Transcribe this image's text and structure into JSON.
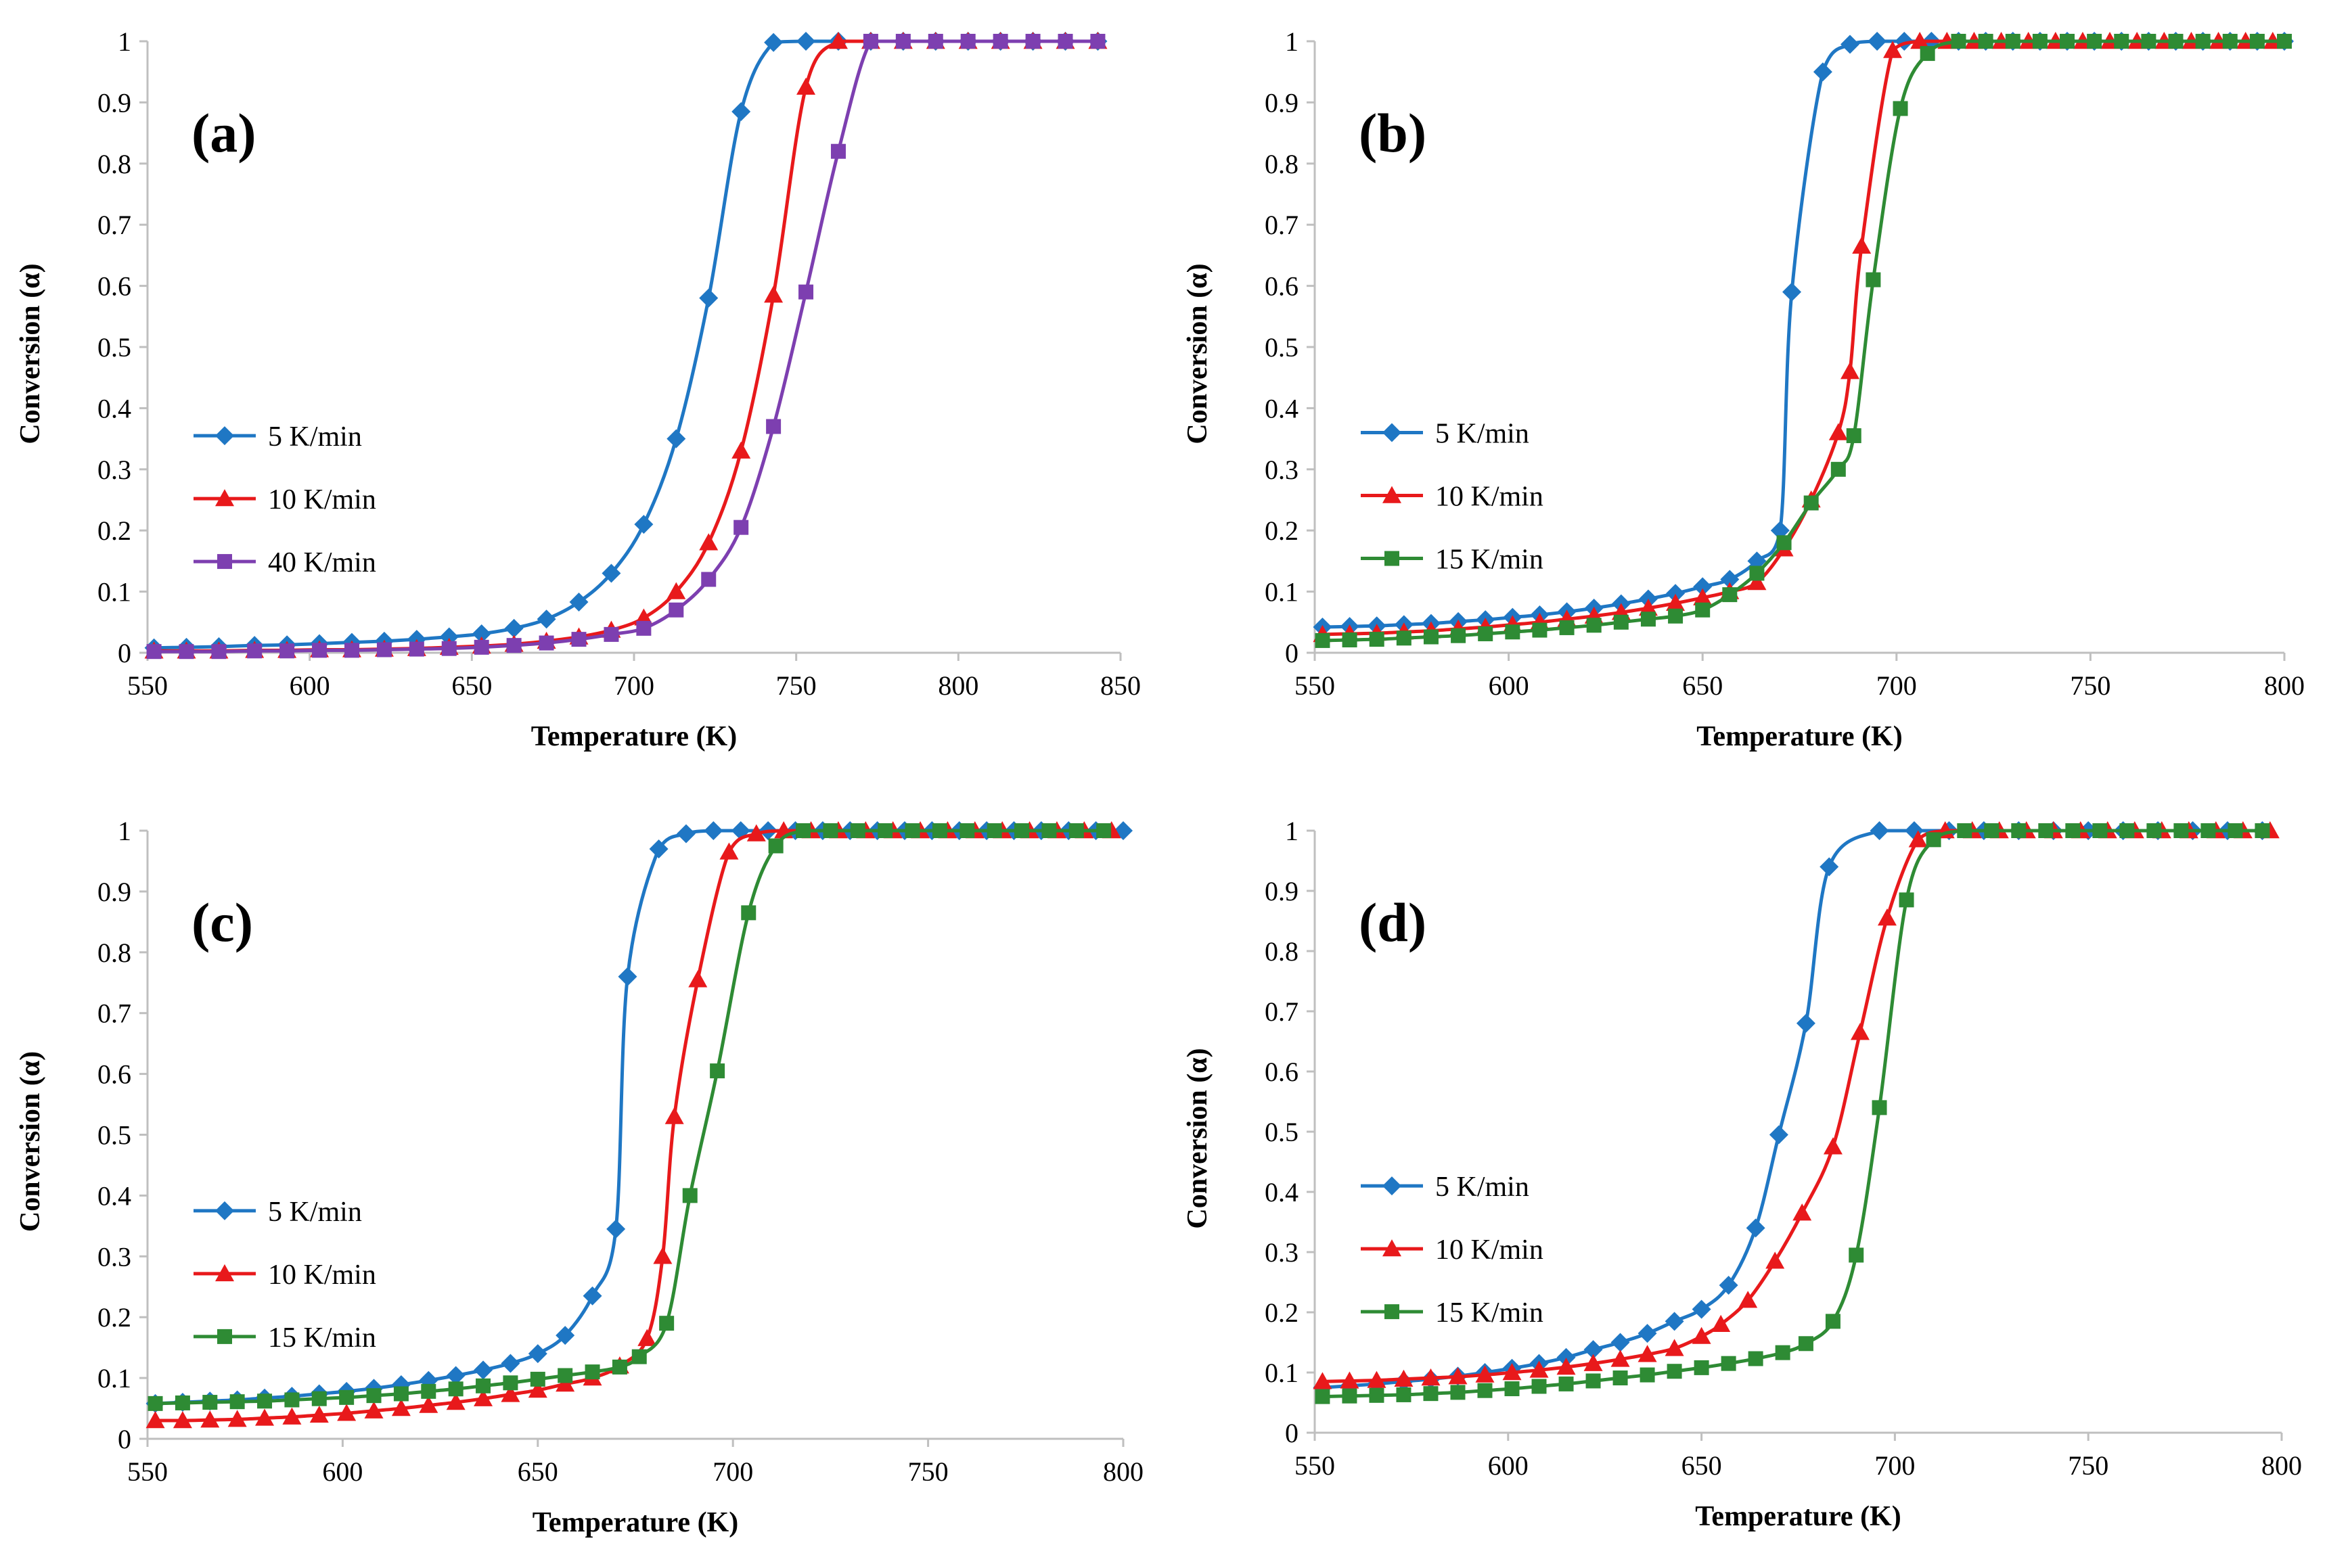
{
  "chart_data": [
    {
      "panel": "(a)",
      "type": "line",
      "xlabel": "Temperature (K)",
      "ylabel": "Conversion (α)",
      "xlim": [
        550,
        850
      ],
      "ylim": [
        0,
        1
      ],
      "xticks": [
        "550",
        "600",
        "650",
        "700",
        "750",
        "800",
        "850"
      ],
      "yticks": [
        "0",
        "0.1",
        "0.2",
        "0.3",
        "0.4",
        "0.5",
        "0.6",
        "0.7",
        "0.8",
        "0.9",
        "1"
      ],
      "legend_position": "center-left",
      "series": [
        {
          "name": "5 K/min",
          "color": "#1f77c4",
          "marker": "diamond",
          "x": [
            552,
            562,
            572,
            583,
            593,
            603,
            613,
            623,
            633,
            643,
            653,
            663,
            673,
            683,
            693,
            703,
            713,
            723,
            733,
            743,
            753,
            763,
            773,
            783,
            793,
            803,
            813,
            823,
            833,
            843
          ],
          "y": [
            0.008,
            0.009,
            0.01,
            0.012,
            0.013,
            0.015,
            0.017,
            0.019,
            0.022,
            0.026,
            0.031,
            0.04,
            0.055,
            0.083,
            0.13,
            0.21,
            0.35,
            0.58,
            0.885,
            0.998,
            1,
            1,
            1,
            1,
            1,
            1,
            1,
            1,
            1,
            1
          ]
        },
        {
          "name": "10 K/min",
          "color": "#e8191b",
          "marker": "triangle",
          "x": [
            552,
            562,
            572,
            583,
            593,
            603,
            613,
            623,
            633,
            643,
            653,
            663,
            673,
            683,
            693,
            703,
            713,
            723,
            733,
            743,
            753,
            763,
            773,
            783,
            793,
            803,
            813,
            823,
            833,
            843
          ],
          "y": [
            0.003,
            0.003,
            0.003,
            0.004,
            0.004,
            0.005,
            0.005,
            0.006,
            0.007,
            0.009,
            0.011,
            0.014,
            0.019,
            0.026,
            0.037,
            0.057,
            0.1,
            0.18,
            0.33,
            0.585,
            0.925,
            1,
            1,
            1,
            1,
            1,
            1,
            1,
            1,
            1
          ]
        },
        {
          "name": "40 K/min",
          "color": "#7d3fb0",
          "marker": "square",
          "x": [
            552,
            562,
            572,
            583,
            593,
            603,
            613,
            623,
            633,
            643,
            653,
            663,
            673,
            683,
            693,
            703,
            713,
            723,
            733,
            743,
            753,
            763,
            773,
            783,
            793,
            803,
            813,
            823,
            833,
            843
          ],
          "y": [
            0.002,
            0.002,
            0.002,
            0.003,
            0.003,
            0.004,
            0.004,
            0.005,
            0.006,
            0.007,
            0.009,
            0.012,
            0.016,
            0.022,
            0.03,
            0.04,
            0.07,
            0.12,
            0.205,
            0.37,
            0.59,
            0.82,
            1,
            1,
            1,
            1,
            1,
            1,
            1,
            1
          ]
        }
      ]
    },
    {
      "panel": "(b)",
      "type": "line",
      "xlabel": "Temperature (K)",
      "ylabel": "Conversion (α)",
      "xlim": [
        550,
        800
      ],
      "ylim": [
        0,
        1
      ],
      "xticks": [
        "550",
        "600",
        "650",
        "700",
        "750",
        "800"
      ],
      "yticks": [
        "0",
        "0.1",
        "0.2",
        "0.3",
        "0.4",
        "0.5",
        "0.6",
        "0.7",
        "0.8",
        "0.9",
        "1"
      ],
      "legend_position": "center-left",
      "series": [
        {
          "name": "5 K/min",
          "color": "#1f77c4",
          "marker": "diamond",
          "x": [
            552,
            559,
            566,
            573,
            580,
            587,
            594,
            601,
            608,
            615,
            622,
            629,
            636,
            643,
            650,
            657,
            664,
            670,
            673,
            681,
            688,
            695,
            702,
            709,
            716,
            723,
            730,
            737,
            744,
            751,
            758,
            765,
            772,
            779,
            786,
            793,
            800
          ],
          "y": [
            0.042,
            0.043,
            0.044,
            0.046,
            0.048,
            0.051,
            0.054,
            0.058,
            0.062,
            0.067,
            0.073,
            0.08,
            0.088,
            0.097,
            0.108,
            0.12,
            0.15,
            0.2,
            0.59,
            0.95,
            0.995,
            1,
            1,
            1,
            1,
            1,
            1,
            1,
            1,
            1,
            1,
            1,
            1,
            1,
            1,
            1,
            1
          ]
        },
        {
          "name": "10 K/min",
          "color": "#e8191b",
          "marker": "triangle",
          "x": [
            552,
            559,
            566,
            573,
            580,
            587,
            594,
            601,
            608,
            615,
            622,
            629,
            636,
            643,
            650,
            657,
            664,
            671,
            678,
            685,
            688,
            691,
            699,
            706,
            713,
            720,
            727,
            734,
            741,
            748,
            755,
            762,
            769,
            776,
            783,
            790,
            797
          ],
          "y": [
            0.03,
            0.031,
            0.032,
            0.034,
            0.036,
            0.039,
            0.042,
            0.046,
            0.05,
            0.055,
            0.06,
            0.066,
            0.073,
            0.081,
            0.09,
            0.1,
            0.115,
            0.17,
            0.25,
            0.36,
            0.46,
            0.665,
            0.985,
            1,
            1,
            1,
            1,
            1,
            1,
            1,
            1,
            1,
            1,
            1,
            1,
            1,
            1
          ]
        },
        {
          "name": "15 K/min",
          "color": "#2e8b34",
          "marker": "square",
          "x": [
            552,
            559,
            566,
            573,
            580,
            587,
            594,
            601,
            608,
            615,
            622,
            629,
            636,
            643,
            650,
            657,
            664,
            671,
            678,
            685,
            689,
            694,
            701,
            708,
            716,
            723,
            730,
            737,
            744,
            751,
            758,
            765,
            772,
            779,
            786,
            793,
            800
          ],
          "y": [
            0.02,
            0.021,
            0.022,
            0.024,
            0.026,
            0.028,
            0.031,
            0.034,
            0.037,
            0.041,
            0.045,
            0.05,
            0.055,
            0.06,
            0.07,
            0.095,
            0.13,
            0.18,
            0.245,
            0.3,
            0.355,
            0.61,
            0.89,
            0.98,
            1,
            1,
            1,
            1,
            1,
            1,
            1,
            1,
            1,
            1,
            1,
            1,
            1
          ]
        }
      ]
    },
    {
      "panel": "(c)",
      "type": "line",
      "xlabel": "Temperature (K)",
      "ylabel": "Conversion (α)",
      "xlim": [
        550,
        800
      ],
      "ylim": [
        0,
        1
      ],
      "xticks": [
        "550",
        "600",
        "650",
        "700",
        "750",
        "800"
      ],
      "yticks": [
        "0",
        "0.1",
        "0.2",
        "0.3",
        "0.4",
        "0.5",
        "0.6",
        "0.7",
        "0.8",
        "0.9",
        "1"
      ],
      "legend_position": "center-left",
      "series": [
        {
          "name": "5 K/min",
          "color": "#1f77c4",
          "marker": "diamond",
          "x": [
            552,
            559,
            566,
            573,
            580,
            587,
            594,
            601,
            608,
            615,
            622,
            629,
            636,
            643,
            650,
            657,
            664,
            670,
            673,
            681,
            688,
            695,
            702,
            709,
            716,
            723,
            730,
            737,
            744,
            751,
            758,
            765,
            772,
            779,
            786,
            793,
            800
          ],
          "y": [
            0.058,
            0.06,
            0.062,
            0.064,
            0.067,
            0.07,
            0.074,
            0.078,
            0.083,
            0.089,
            0.096,
            0.104,
            0.113,
            0.124,
            0.14,
            0.17,
            0.235,
            0.345,
            0.76,
            0.97,
            0.995,
            1,
            1,
            1,
            1,
            1,
            1,
            1,
            1,
            1,
            1,
            1,
            1,
            1,
            1,
            1,
            1
          ]
        },
        {
          "name": "10 K/min",
          "color": "#e8191b",
          "marker": "triangle",
          "x": [
            552,
            559,
            566,
            573,
            580,
            587,
            594,
            601,
            608,
            615,
            622,
            629,
            636,
            643,
            650,
            657,
            664,
            671,
            678,
            682,
            685,
            691,
            699,
            706,
            713,
            720,
            727,
            734,
            741,
            748,
            755,
            762,
            769,
            776,
            783,
            790,
            797
          ],
          "y": [
            0.03,
            0.03,
            0.031,
            0.032,
            0.034,
            0.036,
            0.039,
            0.042,
            0.046,
            0.05,
            0.055,
            0.06,
            0.066,
            0.073,
            0.08,
            0.09,
            0.1,
            0.12,
            0.165,
            0.3,
            0.53,
            0.755,
            0.965,
            0.995,
            1,
            1,
            1,
            1,
            1,
            1,
            1,
            1,
            1,
            1,
            1,
            1,
            1
          ]
        },
        {
          "name": "15 K/min",
          "color": "#2e8b34",
          "marker": "square",
          "x": [
            552,
            559,
            566,
            573,
            580,
            587,
            594,
            601,
            608,
            615,
            622,
            629,
            636,
            643,
            650,
            657,
            664,
            671,
            676,
            683,
            689,
            696,
            704,
            711,
            718,
            725,
            732,
            739,
            746,
            753,
            760,
            767,
            774,
            781,
            788,
            795
          ],
          "y": [
            0.058,
            0.059,
            0.06,
            0.061,
            0.062,
            0.064,
            0.066,
            0.068,
            0.071,
            0.074,
            0.078,
            0.082,
            0.087,
            0.092,
            0.098,
            0.104,
            0.11,
            0.118,
            0.135,
            0.19,
            0.4,
            0.605,
            0.865,
            0.975,
            1,
            1,
            1,
            1,
            1,
            1,
            1,
            1,
            1,
            1,
            1,
            1
          ]
        }
      ]
    },
    {
      "panel": "(d)",
      "type": "line",
      "xlabel": "Temperature (K)",
      "ylabel": "Conversion (α)",
      "xlim": [
        550,
        800
      ],
      "ylim": [
        0,
        1
      ],
      "xticks": [
        "550",
        "600",
        "650",
        "700",
        "750",
        "800"
      ],
      "yticks": [
        "0",
        "0.1",
        "0.2",
        "0.3",
        "0.4",
        "0.5",
        "0.6",
        "0.7",
        "0.8",
        "0.9",
        "1"
      ],
      "legend_position": "center-left",
      "series": [
        {
          "name": "5 K/min",
          "color": "#1f77c4",
          "marker": "diamond",
          "x": [
            552,
            559,
            566,
            573,
            580,
            587,
            594,
            601,
            608,
            615,
            622,
            629,
            636,
            643,
            650,
            657,
            664,
            670,
            677,
            683,
            696,
            705,
            714,
            723,
            732,
            741,
            750,
            759,
            768,
            777,
            786,
            795
          ],
          "y": [
            0.075,
            0.078,
            0.081,
            0.085,
            0.089,
            0.094,
            0.1,
            0.107,
            0.115,
            0.125,
            0.138,
            0.15,
            0.165,
            0.185,
            0.205,
            0.245,
            0.34,
            0.495,
            0.68,
            0.94,
            1,
            1,
            1,
            1,
            1,
            1,
            1,
            1,
            1,
            1,
            1,
            1
          ]
        },
        {
          "name": "10 K/min",
          "color": "#e8191b",
          "marker": "triangle",
          "x": [
            552,
            559,
            566,
            573,
            580,
            587,
            594,
            601,
            608,
            615,
            622,
            629,
            636,
            643,
            650,
            655,
            662,
            669,
            676,
            684,
            691,
            698,
            706,
            713,
            720,
            727,
            734,
            741,
            748,
            755,
            762,
            769,
            776,
            783,
            790,
            797
          ],
          "y": [
            0.085,
            0.086,
            0.087,
            0.089,
            0.091,
            0.093,
            0.096,
            0.1,
            0.104,
            0.109,
            0.115,
            0.122,
            0.13,
            0.14,
            0.16,
            0.18,
            0.22,
            0.285,
            0.365,
            0.475,
            0.665,
            0.855,
            0.985,
            1,
            1,
            1,
            1,
            1,
            1,
            1,
            1,
            1,
            1,
            1,
            1,
            1
          ]
        },
        {
          "name": "15 K/min",
          "color": "#2e8b34",
          "marker": "square",
          "x": [
            552,
            559,
            566,
            573,
            580,
            587,
            594,
            601,
            608,
            615,
            622,
            629,
            636,
            643,
            650,
            657,
            664,
            671,
            677,
            684,
            690,
            696,
            703,
            710,
            718,
            725,
            732,
            739,
            746,
            753,
            760,
            767,
            774,
            781,
            788,
            795
          ],
          "y": [
            0.06,
            0.061,
            0.062,
            0.063,
            0.065,
            0.067,
            0.07,
            0.073,
            0.077,
            0.081,
            0.086,
            0.091,
            0.096,
            0.102,
            0.108,
            0.115,
            0.123,
            0.133,
            0.148,
            0.185,
            0.295,
            0.54,
            0.885,
            0.985,
            1,
            1,
            1,
            1,
            1,
            1,
            1,
            1,
            1,
            1,
            1,
            1
          ]
        }
      ]
    }
  ]
}
